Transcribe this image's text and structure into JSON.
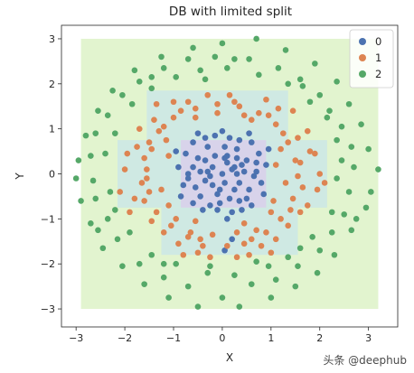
{
  "chart_data": {
    "type": "scatter",
    "title": "DB with limited split",
    "xlabel": "X",
    "ylabel": "Y",
    "xlim": [
      -3.3,
      3.6
    ],
    "ylim": [
      -3.4,
      3.3
    ],
    "xticks": [
      -3,
      -2,
      -1,
      0,
      1,
      2,
      3
    ],
    "yticks": [
      -3,
      -2,
      -1,
      0,
      1,
      2,
      3
    ],
    "legend_position": "top-right",
    "decision_regions": [
      {
        "class": "2",
        "color": "#e2f4cf",
        "rects": [
          [
            -2.9,
            3.2,
            -3.0,
            3.0
          ]
        ]
      },
      {
        "class": "1",
        "color": "#cfe9e3",
        "rects": [
          [
            -1.55,
            1.35,
            0.75,
            1.85
          ],
          [
            -2.15,
            2.15,
            -0.75,
            0.75
          ],
          [
            -1.25,
            1.55,
            -1.8,
            -0.75
          ]
        ]
      },
      {
        "class": "0",
        "color": "#d8d3ea",
        "rects": [
          [
            -0.85,
            0.9,
            -0.75,
            0.75
          ]
        ]
      }
    ],
    "series": [
      {
        "name": "0",
        "color": "#4c72b0",
        "points": [
          [
            0.0,
            0.0
          ],
          [
            0.2,
            0.1
          ],
          [
            -0.2,
            0.15
          ],
          [
            0.35,
            -0.2
          ],
          [
            -0.35,
            -0.15
          ],
          [
            0.1,
            0.4
          ],
          [
            -0.1,
            -0.45
          ],
          [
            0.5,
            0.3
          ],
          [
            -0.5,
            0.35
          ],
          [
            0.55,
            -0.35
          ],
          [
            -0.55,
            -0.3
          ],
          [
            0.05,
            0.6
          ],
          [
            -0.05,
            -0.65
          ],
          [
            0.7,
            0.05
          ],
          [
            -0.7,
            0.0
          ],
          [
            0.3,
            0.55
          ],
          [
            -0.3,
            0.6
          ],
          [
            0.35,
            -0.6
          ],
          [
            -0.25,
            -0.7
          ],
          [
            0.8,
            -0.2
          ],
          [
            -0.8,
            -0.25
          ],
          [
            0.75,
            0.45
          ],
          [
            -0.75,
            0.45
          ],
          [
            0.15,
            0.8
          ],
          [
            -0.15,
            0.85
          ],
          [
            0.2,
            -0.85
          ],
          [
            -0.1,
            -0.8
          ],
          [
            0.6,
            0.7
          ],
          [
            -0.6,
            0.7
          ],
          [
            0.6,
            -0.7
          ],
          [
            -0.6,
            -0.65
          ],
          [
            0.9,
            0.2
          ],
          [
            -0.9,
            0.15
          ],
          [
            0.45,
            0.05
          ],
          [
            -0.45,
            0.05
          ],
          [
            0.25,
            -0.35
          ],
          [
            -0.2,
            -0.25
          ],
          [
            0.1,
            0.25
          ],
          [
            -0.15,
            0.4
          ],
          [
            0.4,
            0.2
          ],
          [
            0.65,
            -0.05
          ],
          [
            -0.6,
            0.15
          ],
          [
            0.05,
            -0.2
          ],
          [
            -0.35,
            0.3
          ],
          [
            0.3,
            0.35
          ],
          [
            0.15,
            -0.55
          ],
          [
            -0.45,
            -0.5
          ],
          [
            0.5,
            -0.55
          ],
          [
            0.85,
            -0.45
          ],
          [
            -0.85,
            -0.5
          ],
          [
            0.0,
            0.95
          ],
          [
            0.1,
            -1.0
          ],
          [
            0.55,
            0.9
          ],
          [
            -0.5,
            0.9
          ],
          [
            0.95,
            0.55
          ],
          [
            -0.95,
            0.5
          ],
          [
            0.25,
            0.15
          ],
          [
            -0.25,
            -0.05
          ],
          [
            0.05,
            0.35
          ],
          [
            -0.05,
            -0.35
          ],
          [
            0.7,
            0.25
          ],
          [
            -0.7,
            -0.1
          ],
          [
            0.35,
            0.75
          ],
          [
            -0.35,
            0.8
          ],
          [
            0.4,
            -0.8
          ],
          [
            -0.4,
            -0.8
          ],
          [
            0.2,
            -1.45
          ],
          [
            0.05,
            -1.7
          ],
          [
            -0.3,
            0.05
          ],
          [
            0.3,
            0.0
          ]
        ]
      },
      {
        "name": "1",
        "color": "#dd8452",
        "points": [
          [
            -0.1,
            1.55
          ],
          [
            0.35,
            1.5
          ],
          [
            -0.55,
            1.45
          ],
          [
            0.75,
            1.35
          ],
          [
            -1.0,
            1.25
          ],
          [
            1.1,
            1.1
          ],
          [
            -1.3,
            0.95
          ],
          [
            1.35,
            0.7
          ],
          [
            -1.45,
            0.55
          ],
          [
            1.5,
            0.3
          ],
          [
            -1.55,
            0.1
          ],
          [
            1.55,
            -0.05
          ],
          [
            -1.5,
            -0.4
          ],
          [
            1.45,
            -0.55
          ],
          [
            -1.35,
            -0.85
          ],
          [
            1.2,
            -1.0
          ],
          [
            -1.05,
            -1.15
          ],
          [
            0.9,
            -1.3
          ],
          [
            -0.7,
            -1.4
          ],
          [
            0.45,
            -1.55
          ],
          [
            -0.4,
            -1.6
          ],
          [
            0.1,
            -1.6
          ],
          [
            -1.2,
            1.05
          ],
          [
            1.25,
            0.9
          ],
          [
            -1.6,
            0.35
          ],
          [
            1.6,
            0.25
          ],
          [
            -1.65,
            -0.2
          ],
          [
            1.65,
            -0.3
          ],
          [
            -0.85,
            1.4
          ],
          [
            0.95,
            1.3
          ],
          [
            -1.75,
            0.6
          ],
          [
            1.8,
            0.5
          ],
          [
            -1.8,
            -0.55
          ],
          [
            1.75,
            -0.7
          ],
          [
            -0.3,
            1.75
          ],
          [
            0.15,
            1.75
          ],
          [
            -0.9,
            -1.55
          ],
          [
            0.8,
            -1.6
          ],
          [
            -1.45,
            -1.05
          ],
          [
            1.35,
            -1.15
          ],
          [
            -0.55,
            1.25
          ],
          [
            0.6,
            1.2
          ],
          [
            -1.15,
            0.75
          ],
          [
            1.2,
            0.55
          ],
          [
            -1.25,
            -0.35
          ],
          [
            1.3,
            -0.2
          ],
          [
            -0.95,
            -1.0
          ],
          [
            1.0,
            -0.85
          ],
          [
            -0.2,
            -1.35
          ],
          [
            0.3,
            -1.3
          ],
          [
            -2.0,
            0.1
          ],
          [
            2.0,
            0.0
          ],
          [
            -1.9,
            -0.85
          ],
          [
            1.95,
            -0.35
          ],
          [
            -0.5,
            -1.75
          ],
          [
            0.55,
            -1.8
          ],
          [
            -1.35,
            1.55
          ],
          [
            1.45,
            1.4
          ],
          [
            -0.65,
            -1.3
          ],
          [
            0.7,
            -1.25
          ],
          [
            -1.7,
            1.0
          ],
          [
            1.75,
            0.95
          ],
          [
            -0.25,
            -1.85
          ],
          [
            0.3,
            -1.85
          ],
          [
            -1.0,
            1.6
          ],
          [
            0.9,
            1.65
          ],
          [
            -2.1,
            -0.4
          ],
          [
            2.1,
            -0.2
          ],
          [
            -0.8,
            -1.8
          ],
          [
            1.0,
            -1.75
          ],
          [
            -1.5,
            0.7
          ],
          [
            1.4,
            -0.8
          ],
          [
            -1.6,
            -0.6
          ],
          [
            1.9,
            0.45
          ],
          [
            -1.4,
            1.2
          ],
          [
            0.25,
            1.6
          ],
          [
            -0.7,
            1.6
          ],
          [
            1.15,
            1.45
          ],
          [
            -1.2,
            -1.3
          ],
          [
            1.1,
            -1.45
          ],
          [
            -0.45,
            -1.45
          ],
          [
            0.6,
            -1.45
          ],
          [
            -1.95,
            0.45
          ],
          [
            1.55,
            0.8
          ],
          [
            -0.1,
            1.35
          ],
          [
            0.45,
            1.3
          ],
          [
            -1.1,
            0.4
          ],
          [
            1.1,
            0.2
          ],
          [
            -1.1,
            -0.7
          ],
          [
            1.05,
            -0.6
          ],
          [
            -0.55,
            -1.05
          ],
          [
            0.45,
            -1.1
          ],
          [
            -1.55,
            -0.1
          ],
          [
            1.6,
            -0.85
          ]
        ]
      },
      {
        "name": "2",
        "color": "#55a868",
        "points": [
          [
            0.7,
            3.0
          ],
          [
            0.0,
            2.9
          ],
          [
            -0.6,
            2.8
          ],
          [
            1.3,
            2.75
          ],
          [
            -1.25,
            2.6
          ],
          [
            1.9,
            2.45
          ],
          [
            -1.8,
            2.3
          ],
          [
            2.35,
            2.05
          ],
          [
            -2.25,
            1.85
          ],
          [
            2.6,
            1.55
          ],
          [
            -2.55,
            1.4
          ],
          [
            2.85,
            1.1
          ],
          [
            -2.8,
            0.85
          ],
          [
            3.0,
            0.55
          ],
          [
            -2.95,
            0.3
          ],
          [
            3.2,
            0.1
          ],
          [
            -3.0,
            -0.1
          ],
          [
            3.05,
            -0.4
          ],
          [
            -2.9,
            -0.6
          ],
          [
            2.95,
            -0.75
          ],
          [
            -2.7,
            -1.1
          ],
          [
            2.65,
            -1.25
          ],
          [
            -2.45,
            -1.65
          ],
          [
            2.3,
            -1.8
          ],
          [
            -2.05,
            -2.05
          ],
          [
            1.95,
            -2.2
          ],
          [
            -1.6,
            -2.45
          ],
          [
            1.5,
            -2.5
          ],
          [
            -1.1,
            -2.75
          ],
          [
            1.0,
            -2.75
          ],
          [
            -0.5,
            -2.95
          ],
          [
            0.35,
            -2.95
          ],
          [
            -0.0,
            -2.75
          ],
          [
            0.6,
            -2.45
          ],
          [
            -0.7,
            -2.5
          ],
          [
            1.1,
            -2.35
          ],
          [
            -1.2,
            -2.3
          ],
          [
            1.55,
            -2.05
          ],
          [
            -1.7,
            -2.0
          ],
          [
            2.0,
            -1.7
          ],
          [
            -2.15,
            -1.45
          ],
          [
            2.25,
            -1.3
          ],
          [
            -2.35,
            -1.0
          ],
          [
            2.5,
            -0.9
          ],
          [
            -2.6,
            -0.55
          ],
          [
            2.6,
            -0.4
          ],
          [
            -2.65,
            -0.15
          ],
          [
            2.7,
            0.15
          ],
          [
            -2.7,
            0.4
          ],
          [
            2.65,
            0.6
          ],
          [
            -2.6,
            0.9
          ],
          [
            2.45,
            1.05
          ],
          [
            -2.35,
            1.3
          ],
          [
            2.2,
            1.4
          ],
          [
            -2.05,
            1.75
          ],
          [
            2.0,
            1.75
          ],
          [
            -1.7,
            2.05
          ],
          [
            1.6,
            2.1
          ],
          [
            -1.2,
            2.35
          ],
          [
            1.15,
            2.35
          ],
          [
            -0.7,
            2.55
          ],
          [
            0.55,
            2.55
          ],
          [
            -0.15,
            2.6
          ],
          [
            0.1,
            2.35
          ],
          [
            -0.45,
            2.3
          ],
          [
            0.75,
            2.2
          ],
          [
            -0.95,
            2.15
          ],
          [
            1.35,
            2.0
          ],
          [
            -1.45,
            1.9
          ],
          [
            1.8,
            1.6
          ],
          [
            -1.85,
            1.55
          ],
          [
            2.15,
            1.25
          ],
          [
            -2.2,
            0.9
          ],
          [
            2.35,
            0.75
          ],
          [
            -2.4,
            0.45
          ],
          [
            2.45,
            0.3
          ],
          [
            -2.3,
            -0.4
          ],
          [
            2.35,
            -0.1
          ],
          [
            -2.2,
            -0.8
          ],
          [
            2.25,
            -0.85
          ],
          [
            -1.9,
            -1.3
          ],
          [
            1.85,
            -1.4
          ],
          [
            -1.45,
            -1.8
          ],
          [
            1.35,
            -1.85
          ],
          [
            -0.95,
            -2.0
          ],
          [
            0.95,
            -2.05
          ],
          [
            -0.3,
            -2.2
          ],
          [
            0.25,
            -2.25
          ],
          [
            -0.25,
            -2.05
          ],
          [
            0.7,
            -1.95
          ],
          [
            -1.2,
            -2.0
          ],
          [
            1.6,
            -1.65
          ],
          [
            -2.55,
            -1.25
          ],
          [
            2.75,
            -1.0
          ],
          [
            -1.45,
            2.15
          ],
          [
            1.65,
            1.95
          ],
          [
            0.25,
            2.55
          ],
          [
            -0.35,
            2.1
          ]
        ]
      }
    ]
  },
  "watermark": "头条 @deephub"
}
